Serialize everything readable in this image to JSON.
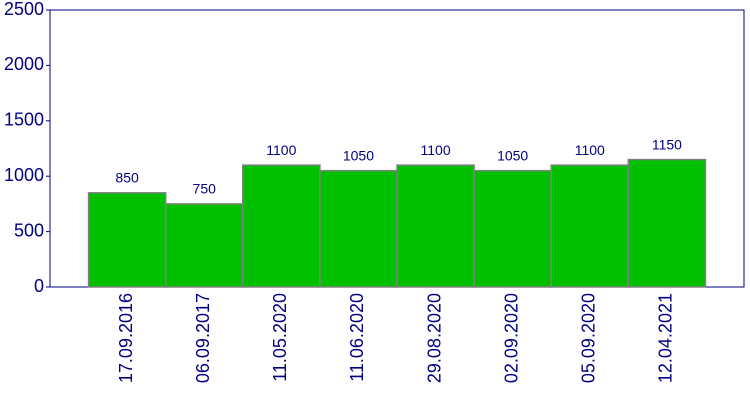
{
  "chart_data": {
    "type": "bar",
    "categories": [
      "17.09.2016",
      "06.09.2017",
      "11.05.2020",
      "11.06.2020",
      "29.08.2020",
      "02.09.2020",
      "05.09.2020",
      "12.04.2021"
    ],
    "values": [
      850,
      750,
      1100,
      1050,
      1100,
      1050,
      1100,
      1150
    ],
    "color": "#00c000",
    "ylim": [
      0,
      2500
    ],
    "yticks": [
      0,
      500,
      1000,
      1500,
      2000,
      2500
    ],
    "grid": false
  }
}
